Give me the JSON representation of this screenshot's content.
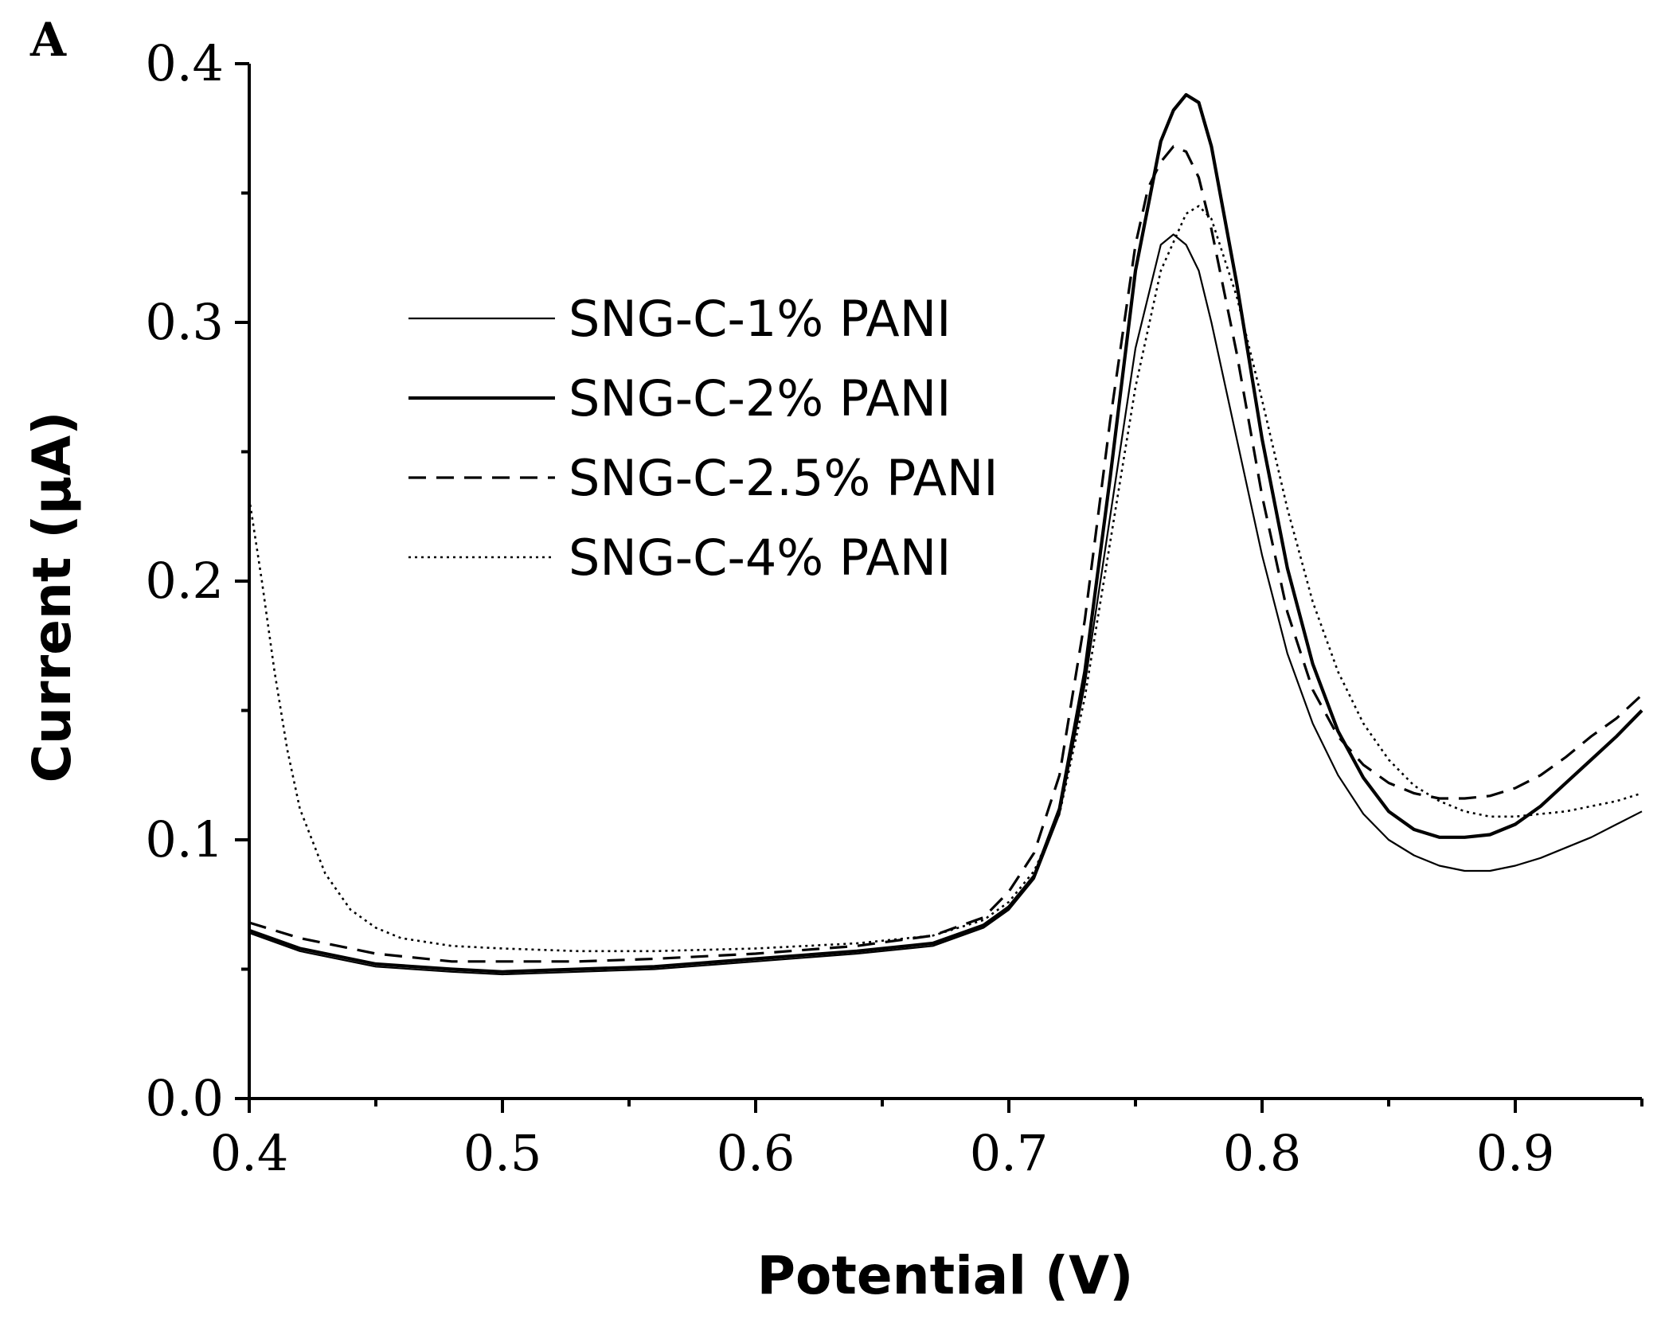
{
  "chart_data": {
    "type": "line",
    "panel_label": "A",
    "title": "",
    "xlabel": "Potential (V)",
    "ylabel": "Current (μA)",
    "xlim": [
      0.4,
      0.95
    ],
    "ylim": [
      0.0,
      0.4
    ],
    "x_ticks": [
      "0.4",
      "0.5",
      "0.6",
      "0.7",
      "0.8",
      "0.9"
    ],
    "y_ticks": [
      "0.0",
      "0.1",
      "0.2",
      "0.3",
      "0.4"
    ],
    "grid": false,
    "legend_position": "upper-left-center",
    "series": [
      {
        "name": "SNG-C-1% PANI",
        "style": "thin-solid",
        "x": [
          0.4,
          0.42,
          0.45,
          0.48,
          0.5,
          0.53,
          0.56,
          0.6,
          0.64,
          0.67,
          0.69,
          0.7,
          0.71,
          0.72,
          0.73,
          0.74,
          0.75,
          0.76,
          0.765,
          0.77,
          0.775,
          0.78,
          0.79,
          0.8,
          0.81,
          0.82,
          0.83,
          0.84,
          0.85,
          0.86,
          0.87,
          0.88,
          0.89,
          0.9,
          0.91,
          0.92,
          0.93,
          0.94,
          0.95
        ],
        "y": [
          0.064,
          0.057,
          0.051,
          0.049,
          0.048,
          0.049,
          0.05,
          0.053,
          0.056,
          0.059,
          0.066,
          0.073,
          0.085,
          0.11,
          0.16,
          0.225,
          0.29,
          0.33,
          0.334,
          0.33,
          0.32,
          0.3,
          0.255,
          0.21,
          0.172,
          0.145,
          0.125,
          0.11,
          0.1,
          0.094,
          0.09,
          0.088,
          0.088,
          0.09,
          0.093,
          0.097,
          0.101,
          0.106,
          0.111
        ]
      },
      {
        "name": "SNG-C-2% PANI",
        "style": "thick-solid",
        "x": [
          0.4,
          0.42,
          0.45,
          0.48,
          0.5,
          0.53,
          0.56,
          0.6,
          0.64,
          0.67,
          0.69,
          0.7,
          0.71,
          0.72,
          0.73,
          0.74,
          0.75,
          0.76,
          0.765,
          0.77,
          0.775,
          0.78,
          0.79,
          0.8,
          0.81,
          0.82,
          0.83,
          0.84,
          0.85,
          0.86,
          0.87,
          0.88,
          0.89,
          0.9,
          0.91,
          0.92,
          0.93,
          0.94,
          0.95
        ],
        "y": [
          0.065,
          0.058,
          0.052,
          0.05,
          0.049,
          0.05,
          0.051,
          0.054,
          0.057,
          0.06,
          0.067,
          0.074,
          0.086,
          0.112,
          0.165,
          0.24,
          0.32,
          0.37,
          0.382,
          0.388,
          0.385,
          0.368,
          0.315,
          0.255,
          0.205,
          0.168,
          0.142,
          0.124,
          0.111,
          0.104,
          0.101,
          0.101,
          0.102,
          0.106,
          0.113,
          0.122,
          0.131,
          0.14,
          0.15
        ]
      },
      {
        "name": "SNG-C-2.5% PANI",
        "style": "dashed",
        "x": [
          0.4,
          0.42,
          0.45,
          0.48,
          0.5,
          0.53,
          0.56,
          0.6,
          0.64,
          0.67,
          0.69,
          0.7,
          0.71,
          0.72,
          0.73,
          0.74,
          0.75,
          0.755,
          0.76,
          0.765,
          0.77,
          0.775,
          0.78,
          0.79,
          0.8,
          0.81,
          0.82,
          0.83,
          0.84,
          0.85,
          0.86,
          0.87,
          0.88,
          0.89,
          0.9,
          0.91,
          0.92,
          0.93,
          0.94,
          0.95
        ],
        "y": [
          0.068,
          0.062,
          0.056,
          0.053,
          0.053,
          0.053,
          0.054,
          0.056,
          0.059,
          0.063,
          0.07,
          0.08,
          0.095,
          0.125,
          0.185,
          0.262,
          0.33,
          0.352,
          0.362,
          0.368,
          0.366,
          0.356,
          0.336,
          0.288,
          0.233,
          0.188,
          0.158,
          0.14,
          0.129,
          0.122,
          0.118,
          0.116,
          0.116,
          0.117,
          0.12,
          0.125,
          0.132,
          0.14,
          0.147,
          0.156
        ]
      },
      {
        "name": "SNG-C-4% PANI",
        "style": "dotted",
        "x": [
          0.4,
          0.405,
          0.41,
          0.415,
          0.42,
          0.43,
          0.44,
          0.45,
          0.46,
          0.48,
          0.5,
          0.53,
          0.56,
          0.6,
          0.64,
          0.67,
          0.69,
          0.7,
          0.71,
          0.72,
          0.73,
          0.74,
          0.75,
          0.76,
          0.77,
          0.775,
          0.78,
          0.79,
          0.8,
          0.81,
          0.82,
          0.83,
          0.84,
          0.85,
          0.86,
          0.87,
          0.88,
          0.89,
          0.9,
          0.91,
          0.92,
          0.93,
          0.94,
          0.95
        ],
        "y": [
          0.232,
          0.2,
          0.165,
          0.135,
          0.112,
          0.087,
          0.073,
          0.066,
          0.062,
          0.059,
          0.058,
          0.057,
          0.057,
          0.058,
          0.06,
          0.063,
          0.069,
          0.076,
          0.088,
          0.11,
          0.155,
          0.215,
          0.275,
          0.32,
          0.342,
          0.345,
          0.34,
          0.31,
          0.27,
          0.228,
          0.192,
          0.165,
          0.145,
          0.131,
          0.121,
          0.115,
          0.111,
          0.109,
          0.109,
          0.11,
          0.111,
          0.113,
          0.115,
          0.118
        ]
      }
    ]
  }
}
